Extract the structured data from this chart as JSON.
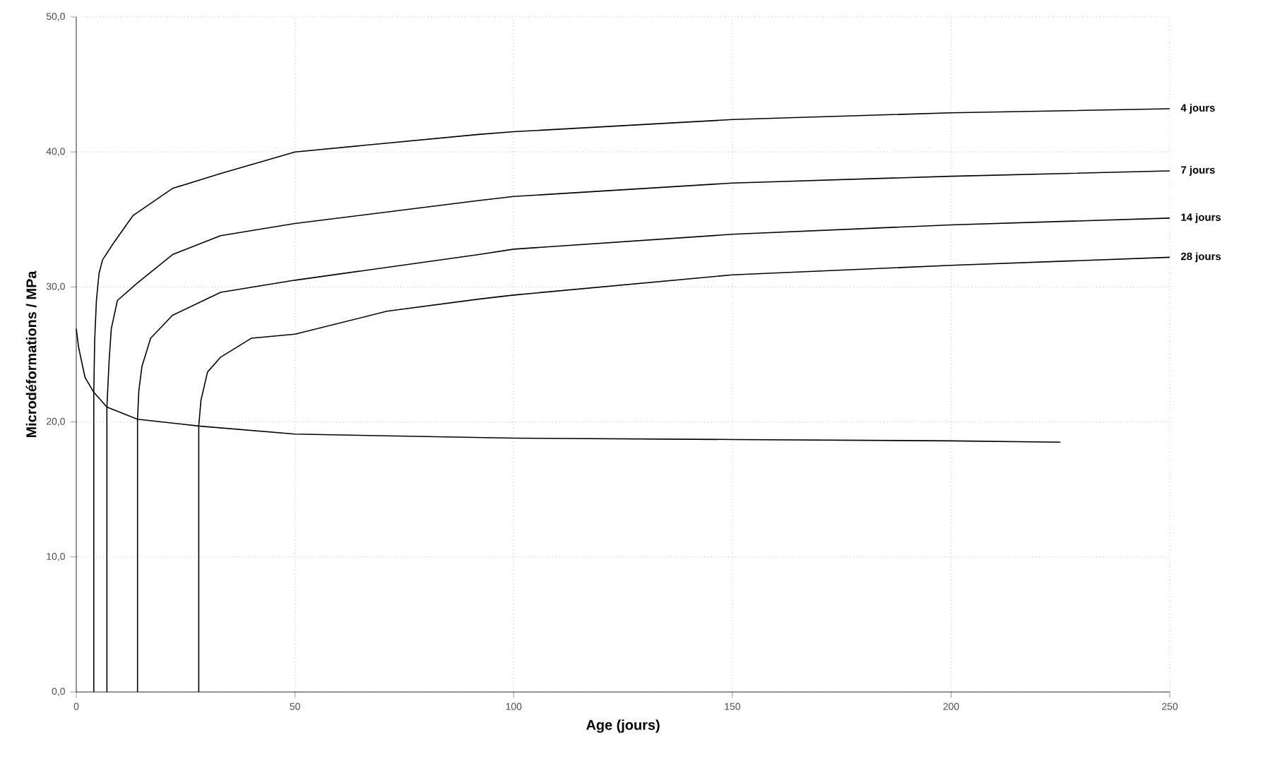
{
  "chart_data": {
    "type": "line",
    "xlabel": "Age (jours)",
    "ylabel": "Microdéformations / MPa",
    "xlim": [
      0,
      250
    ],
    "ylim": [
      0,
      50
    ],
    "xticks": [
      0,
      50,
      100,
      150,
      200,
      250
    ],
    "yticks": [
      {
        "value": 0,
        "label": "0,0"
      },
      {
        "value": 10,
        "label": "10,0"
      },
      {
        "value": 20,
        "label": "20,0"
      },
      {
        "value": 30,
        "label": "30,0"
      },
      {
        "value": 40,
        "label": "40,0"
      },
      {
        "value": 50,
        "label": "50,0"
      }
    ],
    "grid": true,
    "legend": false,
    "marker": "none",
    "line_style": "solid",
    "series": [
      {
        "color": "#000000",
        "x": [
          0,
          0.5,
          1,
          2,
          4,
          7,
          14,
          28,
          50,
          100,
          150,
          200,
          225
        ],
        "values": [
          26.9,
          25.6,
          24.8,
          23.3,
          22.2,
          21.1,
          20.2,
          19.7,
          19.1,
          18.8,
          18.7,
          18.6,
          18.5
        ]
      },
      {
        "name": "4 jours",
        "color": "#000000",
        "x": [
          4,
          4,
          4.2,
          4.6,
          5.2,
          6,
          8.4,
          13,
          22,
          33,
          50,
          92,
          100,
          150,
          200,
          250
        ],
        "values": [
          0,
          22.2,
          26,
          29,
          31,
          32,
          33.2,
          35.3,
          37.3,
          38.4,
          40,
          41.3,
          41.5,
          42.4,
          42.9,
          43.2
        ]
      },
      {
        "name": "7 jours",
        "color": "#000000",
        "x": [
          7,
          7,
          7.5,
          8,
          9.4,
          14,
          22,
          33,
          50,
          92,
          100,
          150,
          200,
          250
        ],
        "values": [
          0,
          21.1,
          24.5,
          26.9,
          29,
          30.3,
          32.4,
          33.8,
          34.7,
          36.4,
          36.7,
          37.7,
          38.2,
          38.6
        ]
      },
      {
        "name": "14 jours",
        "color": "#000000",
        "x": [
          14,
          14,
          14.3,
          15,
          17,
          22,
          33,
          50,
          92,
          100,
          150,
          200,
          250
        ],
        "values": [
          0,
          20.2,
          22.3,
          24.1,
          26.2,
          27.9,
          29.6,
          30.5,
          32.4,
          32.8,
          33.9,
          34.6,
          35.1
        ]
      },
      {
        "name": "28 jours",
        "color": "#000000",
        "x": [
          28,
          28,
          28.5,
          30,
          33,
          40,
          50,
          71,
          92,
          100,
          150,
          200,
          250
        ],
        "values": [
          0,
          19.7,
          21.6,
          23.7,
          24.8,
          26.2,
          26.5,
          28.2,
          29.1,
          29.4,
          30.9,
          31.6,
          32.2
        ]
      }
    ]
  }
}
